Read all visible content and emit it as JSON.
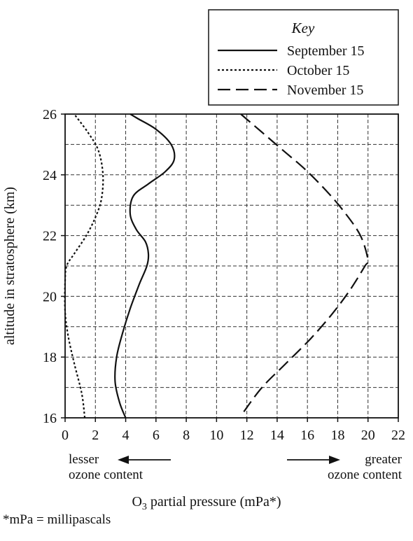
{
  "legend": {
    "title": "Key",
    "entries": [
      {
        "label": "September 15",
        "style": "solid"
      },
      {
        "label": "October 15",
        "style": "dotted"
      },
      {
        "label": "November 15",
        "style": "dashed"
      }
    ]
  },
  "annotations": {
    "lesser_line1": "lesser",
    "lesser_line2": "ozone content",
    "greater_line1": "greater",
    "greater_line2": "ozone content"
  },
  "footnote": "*mPa = millipascals",
  "colors": {
    "ink": "#111111",
    "background": "#ffffff"
  },
  "chart_data": {
    "type": "line",
    "title": "",
    "xlabel_main": "O",
    "xlabel_sub": "3",
    "xlabel_rest": " partial pressure (mPa*)",
    "ylabel": "altitude in stratosphere (km)",
    "xlim": [
      0,
      22
    ],
    "ylim": [
      16,
      26
    ],
    "xticks": [
      0,
      2,
      4,
      6,
      8,
      10,
      12,
      14,
      16,
      18,
      20,
      22
    ],
    "yticks": [
      16,
      18,
      20,
      22,
      24,
      26
    ],
    "grid": true,
    "series": [
      {
        "name": "September 15",
        "style": "solid",
        "points": [
          [
            4.0,
            16
          ],
          [
            3.6,
            16.5
          ],
          [
            3.3,
            17.2
          ],
          [
            3.4,
            18
          ],
          [
            3.8,
            18.8
          ],
          [
            4.3,
            19.6
          ],
          [
            4.9,
            20.4
          ],
          [
            5.4,
            21
          ],
          [
            5.5,
            21.4
          ],
          [
            5.3,
            21.8
          ],
          [
            4.7,
            22.2
          ],
          [
            4.3,
            22.7
          ],
          [
            4.5,
            23.3
          ],
          [
            5.5,
            23.7
          ],
          [
            6.6,
            24.1
          ],
          [
            7.2,
            24.5
          ],
          [
            7.0,
            25.0
          ],
          [
            6.0,
            25.5
          ],
          [
            4.8,
            25.85
          ],
          [
            4.3,
            26
          ]
        ]
      },
      {
        "name": "October 15",
        "style": "dotted",
        "points": [
          [
            1.3,
            16
          ],
          [
            1.1,
            16.8
          ],
          [
            0.6,
            17.8
          ],
          [
            0.2,
            18.7
          ],
          [
            0.0,
            19.5
          ],
          [
            0.0,
            20.5
          ],
          [
            0.1,
            21.0
          ],
          [
            0.6,
            21.4
          ],
          [
            1.4,
            22.0
          ],
          [
            2.0,
            22.6
          ],
          [
            2.4,
            23.2
          ],
          [
            2.5,
            24.0
          ],
          [
            2.2,
            24.8
          ],
          [
            1.5,
            25.4
          ],
          [
            0.6,
            26
          ]
        ]
      },
      {
        "name": "November 15",
        "style": "dashed",
        "points": [
          [
            11.8,
            16.2
          ],
          [
            13.0,
            17.0
          ],
          [
            14.6,
            17.8
          ],
          [
            16.2,
            18.6
          ],
          [
            17.6,
            19.4
          ],
          [
            18.8,
            20.2
          ],
          [
            19.8,
            21.0
          ],
          [
            20.0,
            21.2
          ],
          [
            19.5,
            22.0
          ],
          [
            18.4,
            22.8
          ],
          [
            17.2,
            23.5
          ],
          [
            15.8,
            24.2
          ],
          [
            14.4,
            24.8
          ],
          [
            13.0,
            25.4
          ],
          [
            11.6,
            26
          ]
        ]
      }
    ]
  }
}
